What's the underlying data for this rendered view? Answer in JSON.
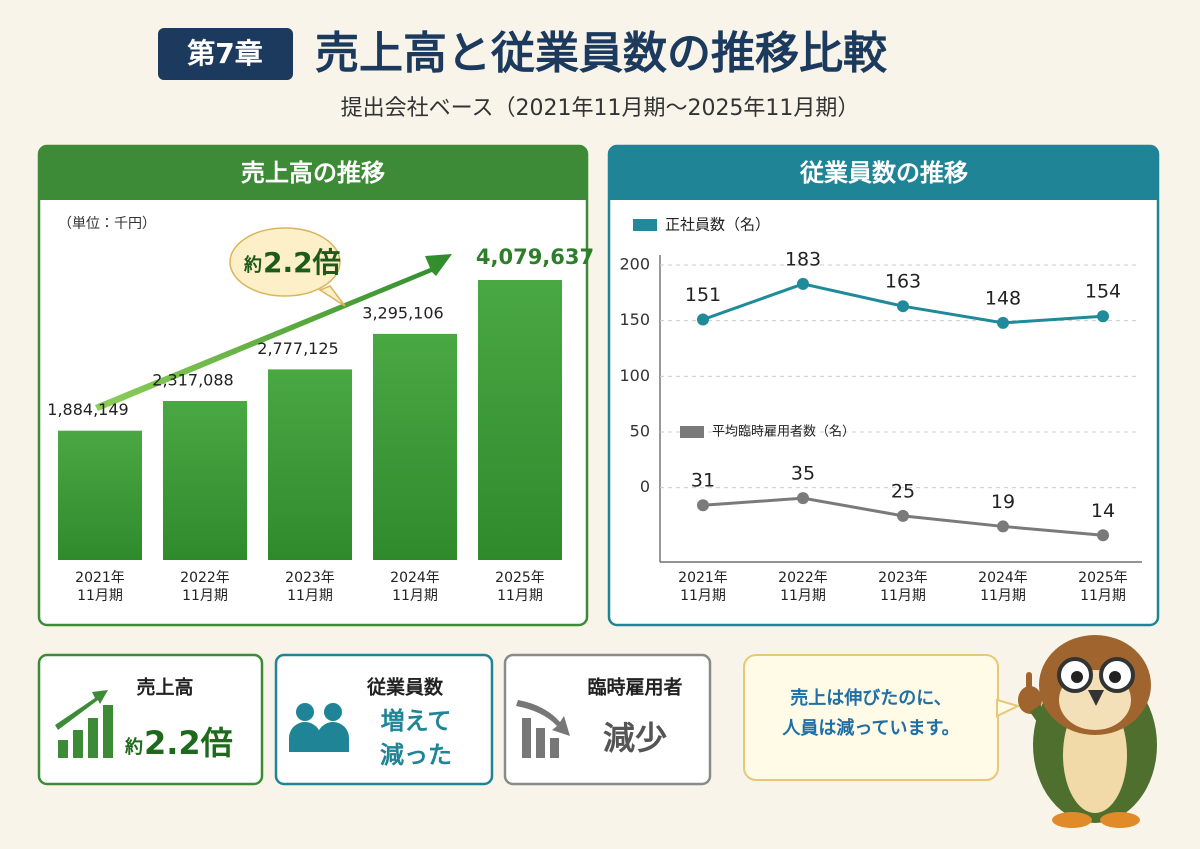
{
  "header": {
    "chapter": "第7章",
    "title": "売上高と従業員数の推移比較",
    "subtitle": "提出会社ベース（2021年11月期〜2025年11月期）"
  },
  "chart_data": [
    {
      "type": "bar",
      "title": "売上高の推移",
      "unit": "（単位：千円）",
      "categories": [
        "2021年\n11月期",
        "2022年\n11月期",
        "2023年\n11月期",
        "2024年\n11月期",
        "2025年\n11月期"
      ],
      "values": [
        1884149,
        2317088,
        2777125,
        3295106,
        4079637
      ],
      "value_labels": [
        "1,884,149",
        "2,317,088",
        "2,777,125",
        "3,295,106",
        "4,079,637"
      ],
      "color": "#3f9a3a",
      "annotation": {
        "prefix": "約",
        "text": "2.2倍"
      }
    },
    {
      "type": "line",
      "title": "従業員数の推移",
      "categories": [
        "2021年\n11月期",
        "2022年\n11月期",
        "2023年\n11月期",
        "2024年\n11月期",
        "2025年\n11月期"
      ],
      "series": [
        {
          "name": "正社員数（名）",
          "color": "#1f8a9a",
          "values": [
            151,
            183,
            163,
            148,
            154
          ]
        },
        {
          "name": "平均臨時雇用者数（名）",
          "color": "#7a7a7a",
          "values": [
            31,
            35,
            25,
            19,
            14
          ],
          "axis": "y2"
        }
      ],
      "ylim": [
        -65,
        200
      ],
      "yticks": [
        0,
        50,
        100,
        150,
        200
      ],
      "y2lim": [
        0,
        167
      ],
      "grid": true
    }
  ],
  "cards": [
    {
      "title": "売上高",
      "prefix": "約",
      "value": "2.2倍"
    },
    {
      "title": "従業員数",
      "value": "増えて\n減った"
    },
    {
      "title": "臨時雇用者",
      "value": "減少"
    }
  ],
  "speech": "売上は伸びたのに、\n人員は減っています。"
}
